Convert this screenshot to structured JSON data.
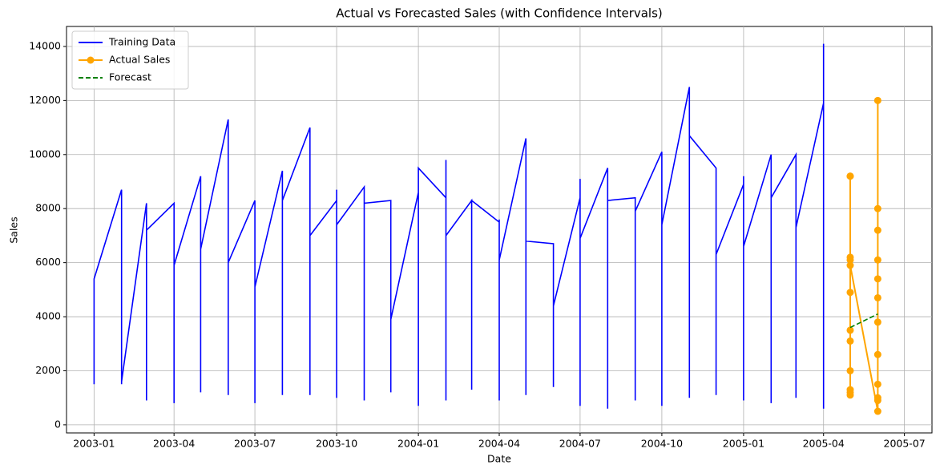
{
  "chart_data": {
    "type": "line",
    "title": "Actual vs Forecasted Sales (with Confidence Intervals)",
    "x_label": "Date",
    "y_label": "Sales",
    "xlim": [
      "2002-12",
      "2005-08"
    ],
    "xticks": [
      "2003-01",
      "2003-04",
      "2003-07",
      "2003-10",
      "2004-01",
      "2004-04",
      "2004-07",
      "2004-10",
      "2005-01",
      "2005-04",
      "2005-07"
    ],
    "ylim": [
      -300,
      14740
    ],
    "yticks": [
      0,
      2000,
      4000,
      6000,
      8000,
      10000,
      12000,
      14000
    ],
    "grid": true,
    "legend": "upper left",
    "series": [
      {
        "name": "Training Data",
        "color": "#0000ff",
        "style": "solid",
        "markers": false,
        "x": [
          "2003-01",
          "2003-01",
          "2003-01",
          "2003-01",
          "2003-01",
          "2003-02",
          "2003-02",
          "2003-02",
          "2003-02",
          "2003-02",
          "2003-03",
          "2003-03",
          "2003-03",
          "2003-03",
          "2003-03",
          "2003-04",
          "2003-04",
          "2003-04",
          "2003-04",
          "2003-04",
          "2003-05",
          "2003-05",
          "2003-05",
          "2003-05",
          "2003-05",
          "2003-06",
          "2003-06",
          "2003-06",
          "2003-06",
          "2003-06",
          "2003-07",
          "2003-07",
          "2003-07",
          "2003-07",
          "2003-07",
          "2003-08",
          "2003-08",
          "2003-08",
          "2003-08",
          "2003-08",
          "2003-09",
          "2003-09",
          "2003-09",
          "2003-09",
          "2003-09",
          "2003-10",
          "2003-10",
          "2003-10",
          "2003-10",
          "2003-10",
          "2003-11",
          "2003-11",
          "2003-11",
          "2003-11",
          "2003-11",
          "2003-12",
          "2003-12",
          "2003-12",
          "2003-12",
          "2003-12",
          "2004-01",
          "2004-01",
          "2004-01",
          "2004-01",
          "2004-01",
          "2004-02",
          "2004-02",
          "2004-02",
          "2004-02",
          "2004-02",
          "2004-03",
          "2004-03",
          "2004-03",
          "2004-03",
          "2004-03",
          "2004-04",
          "2004-04",
          "2004-04",
          "2004-04",
          "2004-04",
          "2004-05",
          "2004-05",
          "2004-05",
          "2004-05",
          "2004-05",
          "2004-06",
          "2004-06",
          "2004-06",
          "2004-06",
          "2004-06",
          "2004-07",
          "2004-07",
          "2004-07",
          "2004-07",
          "2004-07",
          "2004-08",
          "2004-08",
          "2004-08",
          "2004-08",
          "2004-08",
          "2004-09",
          "2004-09",
          "2004-09",
          "2004-09",
          "2004-09",
          "2004-10",
          "2004-10",
          "2004-10",
          "2004-10",
          "2004-10",
          "2004-11",
          "2004-11",
          "2004-11",
          "2004-11",
          "2004-11",
          "2004-12",
          "2004-12",
          "2004-12",
          "2004-12",
          "2004-12",
          "2005-01",
          "2005-01",
          "2005-01",
          "2005-01",
          "2005-01",
          "2005-02",
          "2005-02",
          "2005-02",
          "2005-02",
          "2005-02",
          "2005-03",
          "2005-03",
          "2005-03",
          "2005-03",
          "2005-03",
          "2005-04",
          "2005-04",
          "2005-04",
          "2005-04",
          "2005-04"
        ],
        "values": [
          5100,
          1500,
          4800,
          1700,
          5400,
          8700,
          1500,
          5300,
          6100,
          1600,
          8200,
          900,
          6100,
          1800,
          7200,
          8200,
          800,
          7300,
          2900,
          5900,
          9200,
          1400,
          8200,
          1200,
          6500,
          11300,
          1100,
          7300,
          1300,
          6000,
          8300,
          800,
          7900,
          1500,
          5100,
          9400,
          1100,
          7300,
          1300,
          8300,
          11000,
          1200,
          9200,
          1100,
          7000,
          8300,
          1000,
          8700,
          1200,
          7400,
          8800,
          900,
          8700,
          1100,
          8200,
          8300,
          1200,
          7000,
          2000,
          3900,
          8600,
          1800,
          6100,
          700,
          9500,
          8400,
          900,
          9800,
          1500,
          7000,
          8300,
          1300,
          6400,
          1600,
          8300,
          7500,
          900,
          7600,
          1000,
          6100,
          10600,
          1100,
          7500,
          1300,
          6800,
          6700,
          1700,
          6000,
          1400,
          4400,
          8400,
          700,
          9100,
          1400,
          6900,
          9500,
          600,
          7000,
          1200,
          8300,
          8400,
          900,
          6600,
          1800,
          7900,
          10100,
          700,
          9300,
          1100,
          7400,
          12500,
          1000,
          11300,
          1200,
          10700,
          9500,
          1100,
          8500,
          1200,
          6300,
          8900,
          900,
          9200,
          1200,
          6600,
          10000,
          800,
          8900,
          1100,
          8400,
          10000,
          1000,
          8900,
          1100,
          7300,
          11900,
          1200,
          11800,
          600,
          14100
        ]
      },
      {
        "name": "Actual Sales",
        "color": "#ffa500",
        "style": "solid",
        "markers": true,
        "x": [
          "2005-05",
          "2005-05",
          "2005-05",
          "2005-05",
          "2005-05",
          "2005-05",
          "2005-05",
          "2005-05",
          "2005-05",
          "2005-05",
          "2005-05",
          "2005-05",
          "2005-06",
          "2005-06",
          "2005-06",
          "2005-06",
          "2005-06",
          "2005-06",
          "2005-06",
          "2005-06",
          "2005-06",
          "2005-06",
          "2005-06",
          "2005-06"
        ],
        "values": [
          1200,
          6200,
          3500,
          9200,
          1300,
          4900,
          2000,
          6100,
          3100,
          9200,
          1100,
          5900,
          500,
          12000,
          900,
          8000,
          1500,
          7200,
          2600,
          6100,
          3800,
          5400,
          1000,
          4700
        ]
      },
      {
        "name": "Forecast",
        "color": "#008000",
        "style": "dashed",
        "markers": false,
        "x": [
          "2005-05",
          "2005-06"
        ],
        "values": [
          3600,
          4100
        ]
      }
    ]
  }
}
